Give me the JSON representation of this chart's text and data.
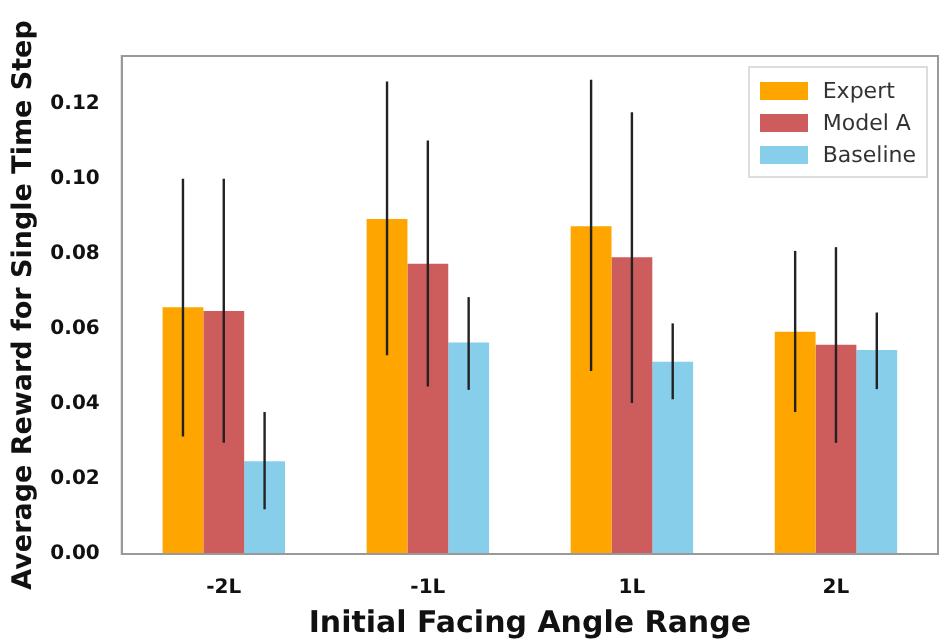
{
  "chart_data": {
    "type": "bar",
    "xlabel": "Initial Facing Angle Range",
    "ylabel": "Average Reward for Single Time Step",
    "categories": [
      "-2L",
      "-1L",
      "1L",
      "2L"
    ],
    "series": [
      {
        "name": "Expert",
        "color": "#ffa500",
        "values": [
          0.0657,
          0.0892,
          0.0873,
          0.0592
        ],
        "errors": [
          [
            0.0313,
            0.0999
          ],
          [
            0.0529,
            0.1258
          ],
          [
            0.0487,
            0.1263
          ],
          [
            0.0378,
            0.0807
          ]
        ]
      },
      {
        "name": "Model A",
        "color": "#cd5c5c",
        "values": [
          0.0647,
          0.0773,
          0.079,
          0.0557
        ],
        "errors": [
          [
            0.0296,
            0.0999
          ],
          [
            0.0446,
            0.1101
          ],
          [
            0.0402,
            0.1176
          ],
          [
            0.0296,
            0.0817
          ]
        ]
      },
      {
        "name": "Baseline",
        "color": "#87ceeb",
        "values": [
          0.0247,
          0.0563,
          0.0512,
          0.0543
        ],
        "errors": [
          [
            0.0119,
            0.0378
          ],
          [
            0.0437,
            0.0684
          ],
          [
            0.0412,
            0.0614
          ],
          [
            0.0439,
            0.0643
          ]
        ]
      }
    ],
    "ylim": [
      0,
      0.1326
    ],
    "yticks": [
      {
        "value": 0,
        "label": "0.00"
      },
      0.02,
      0.04,
      0.06,
      0.08,
      {
        "value": 0.1,
        "label": "0.10"
      },
      0.12
    ],
    "grid": false,
    "legend": "top right"
  }
}
